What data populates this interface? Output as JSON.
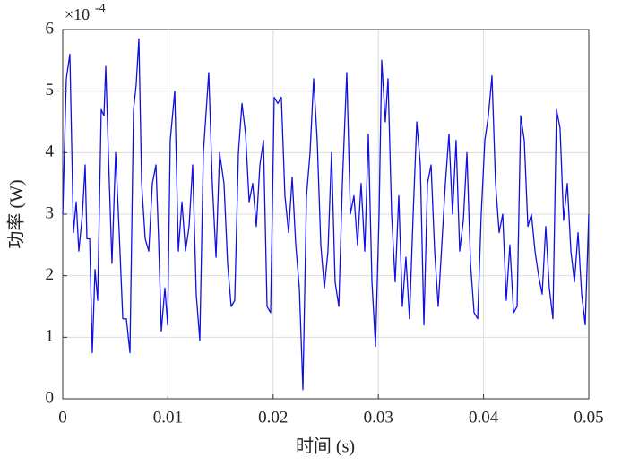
{
  "chart_data": {
    "type": "line",
    "xlabel": "时间 (s)",
    "ylabel": "功率 (W)",
    "y_scale_label": "×10",
    "y_scale_exponent": "-4",
    "xlim": [
      0,
      0.05
    ],
    "xticks": [
      0,
      0.01,
      0.02,
      0.03,
      0.04,
      0.05
    ],
    "ylim": [
      0,
      6
    ],
    "yticks": [
      0,
      1,
      2,
      3,
      4,
      5,
      6
    ],
    "grid": true,
    "color": "#1010e0",
    "x": [
      0,
      0.00034,
      0.00068,
      0.00102,
      0.00128,
      0.00153,
      0.00187,
      0.00213,
      0.0023,
      0.00256,
      0.00281,
      0.00307,
      0.00332,
      0.00366,
      0.00392,
      0.00409,
      0.00434,
      0.00468,
      0.00503,
      0.00537,
      0.00571,
      0.00605,
      0.00639,
      0.00673,
      0.00698,
      0.00724,
      0.0075,
      0.00784,
      0.00818,
      0.00852,
      0.00886,
      0.00911,
      0.00937,
      0.00971,
      0.00997,
      0.01022,
      0.01065,
      0.01099,
      0.01133,
      0.01167,
      0.01201,
      0.01235,
      0.01269,
      0.01303,
      0.01337,
      0.01388,
      0.01422,
      0.01457,
      0.01491,
      0.01533,
      0.01567,
      0.01601,
      0.01635,
      0.0167,
      0.01704,
      0.01738,
      0.01772,
      0.01806,
      0.0184,
      0.01874,
      0.01908,
      0.01942,
      0.01976,
      0.0201,
      0.02044,
      0.02078,
      0.02112,
      0.02147,
      0.02181,
      0.02215,
      0.02249,
      0.02283,
      0.02317,
      0.02351,
      0.02385,
      0.02419,
      0.02453,
      0.02487,
      0.02521,
      0.02555,
      0.02589,
      0.02624,
      0.02658,
      0.027,
      0.02734,
      0.02768,
      0.02802,
      0.02836,
      0.02871,
      0.02905,
      0.02939,
      0.02973,
      0.03007,
      0.03032,
      0.03066,
      0.03092,
      0.03126,
      0.0316,
      0.03194,
      0.03228,
      0.03262,
      0.03296,
      0.03331,
      0.03365,
      0.03399,
      0.03433,
      0.03467,
      0.03501,
      0.03535,
      0.03569,
      0.03603,
      0.03637,
      0.03671,
      0.03705,
      0.03739,
      0.03773,
      0.03808,
      0.03842,
      0.03876,
      0.0391,
      0.03944,
      0.03978,
      0.04012,
      0.04046,
      0.0408,
      0.04114,
      0.04148,
      0.04182,
      0.04216,
      0.0425,
      0.04285,
      0.04319,
      0.04353,
      0.04387,
      0.04421,
      0.04455,
      0.04489,
      0.04523,
      0.04557,
      0.04591,
      0.04625,
      0.04659,
      0.04693,
      0.04727,
      0.04761,
      0.04796,
      0.0483,
      0.04864,
      0.04898,
      0.04932,
      0.04966,
      0.05
    ],
    "values": [
      3.0,
      5.2,
      5.6,
      2.7,
      3.2,
      2.4,
      3.0,
      3.8,
      2.6,
      2.6,
      0.75,
      2.1,
      1.6,
      4.7,
      4.6,
      5.4,
      4.0,
      2.2,
      4.0,
      2.7,
      1.3,
      1.3,
      0.75,
      4.7,
      5.1,
      5.85,
      3.5,
      2.6,
      2.4,
      3.5,
      3.8,
      2.6,
      1.1,
      1.8,
      1.2,
      4.2,
      5.0,
      2.4,
      3.2,
      2.4,
      2.8,
      3.8,
      1.7,
      0.95,
      4.0,
      5.3,
      3.5,
      2.3,
      4.0,
      3.5,
      2.2,
      1.5,
      1.6,
      4.0,
      4.8,
      4.3,
      3.2,
      3.5,
      2.8,
      3.8,
      4.2,
      1.5,
      1.4,
      4.9,
      4.8,
      4.9,
      3.3,
      2.7,
      3.6,
      2.5,
      1.8,
      0.15,
      3.3,
      4.0,
      5.2,
      4.2,
      2.5,
      1.8,
      2.4,
      4.0,
      1.9,
      1.5,
      3.5,
      5.3,
      3.0,
      3.3,
      2.5,
      3.5,
      2.4,
      4.3,
      1.9,
      0.85,
      3.0,
      5.5,
      4.5,
      5.2,
      3.0,
      1.9,
      3.3,
      1.5,
      2.3,
      1.3,
      3.0,
      4.5,
      3.8,
      1.2,
      3.5,
      3.8,
      2.4,
      1.5,
      2.5,
      3.5,
      4.3,
      3.0,
      4.2,
      2.4,
      2.9,
      4.0,
      2.2,
      1.4,
      1.3,
      3.0,
      4.2,
      4.6,
      5.25,
      3.5,
      2.7,
      3.0,
      1.6,
      2.5,
      1.4,
      1.5,
      4.6,
      4.2,
      2.8,
      3.0,
      2.4,
      2.0,
      1.7,
      2.8,
      1.8,
      1.3,
      4.7,
      4.4,
      2.9,
      3.5,
      2.4,
      1.9,
      2.7,
      1.7,
      1.2,
      3.0
    ]
  }
}
